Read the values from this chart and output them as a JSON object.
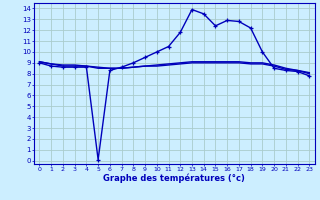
{
  "xlabel": "Graphe des températures (°c)",
  "bg_color": "#cceeff",
  "grid_color": "#aacccc",
  "line_color": "#0000bb",
  "x_ticks": [
    0,
    1,
    2,
    3,
    4,
    5,
    6,
    7,
    8,
    9,
    10,
    11,
    12,
    13,
    14,
    15,
    16,
    17,
    18,
    19,
    20,
    21,
    22,
    23
  ],
  "y_ticks": [
    0,
    1,
    2,
    3,
    4,
    5,
    6,
    7,
    8,
    9,
    10,
    11,
    12,
    13,
    14
  ],
  "ylim": [
    -0.3,
    14.5
  ],
  "xlim": [
    -0.5,
    23.5
  ],
  "line1_x": [
    0,
    1,
    2,
    3,
    4,
    5,
    6,
    7,
    8,
    9,
    10,
    11,
    12,
    13,
    14,
    15,
    16,
    17,
    18,
    19,
    20,
    21,
    22,
    23
  ],
  "line1_y": [
    9.0,
    8.7,
    8.6,
    8.6,
    8.6,
    0.1,
    8.3,
    8.6,
    9.0,
    9.5,
    10.0,
    10.5,
    11.8,
    13.9,
    13.5,
    12.4,
    12.9,
    12.8,
    12.2,
    10.0,
    8.5,
    8.3,
    8.2,
    7.8
  ],
  "line2_x": [
    0,
    1,
    2,
    3,
    4,
    5,
    6,
    7,
    8,
    9,
    10,
    11,
    12,
    13,
    14,
    15,
    16,
    17,
    18,
    19,
    20,
    21,
    22,
    23
  ],
  "line2_y": [
    9.1,
    8.9,
    8.8,
    8.8,
    8.7,
    8.6,
    8.5,
    8.5,
    8.6,
    8.7,
    8.8,
    8.9,
    9.0,
    9.1,
    9.1,
    9.1,
    9.1,
    9.1,
    9.0,
    9.0,
    8.8,
    8.5,
    8.3,
    8.1
  ],
  "line3_x": [
    0,
    1,
    2,
    3,
    4,
    5,
    6,
    7,
    8,
    9,
    10,
    11,
    12,
    13,
    14,
    15,
    16,
    17,
    18,
    19,
    20,
    21,
    22,
    23
  ],
  "line3_y": [
    9.1,
    8.9,
    8.7,
    8.7,
    8.7,
    8.5,
    8.5,
    8.5,
    8.6,
    8.7,
    8.7,
    8.8,
    8.9,
    9.0,
    9.0,
    9.0,
    9.0,
    9.0,
    8.9,
    8.9,
    8.7,
    8.4,
    8.3,
    8.0
  ]
}
